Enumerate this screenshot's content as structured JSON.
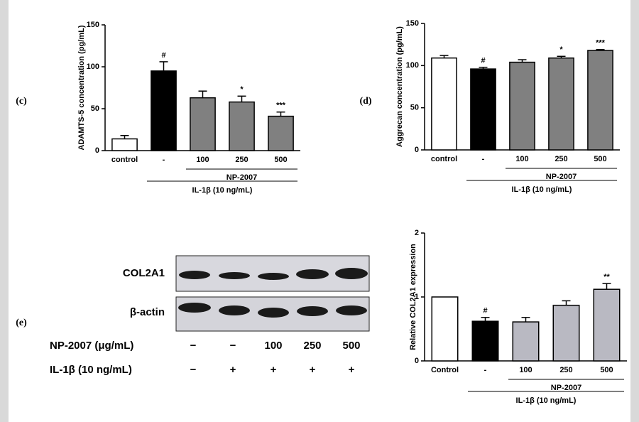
{
  "chart_data": [
    {
      "type": "bar",
      "panel": "(c)",
      "ylabel": "ADAMTS-5 concentration (pg/mL)",
      "categories": [
        "control",
        "-",
        "100",
        "250",
        "500"
      ],
      "values": [
        14,
        95,
        63,
        58,
        41
      ],
      "errors": [
        4,
        11,
        8,
        7,
        5
      ],
      "annotations": [
        "",
        "#",
        null,
        "*",
        "***"
      ],
      "colors": [
        "#ffffff",
        "#000000",
        "#808080",
        "#808080",
        "#808080"
      ],
      "groups": [
        "NP-2007",
        "IL-1β (10 ng/mL)"
      ],
      "ylim": [
        0,
        150
      ],
      "yticks": [
        0,
        50,
        100,
        150
      ]
    },
    {
      "type": "bar",
      "panel": "(d)",
      "ylabel": "Aggrecan concentration (pg/mL)",
      "categories": [
        "control",
        "-",
        "100",
        "250",
        "500"
      ],
      "values": [
        109,
        96,
        104,
        109,
        118
      ],
      "errors": [
        3,
        2,
        3,
        2,
        1
      ],
      "annotations": [
        null,
        "#",
        null,
        "*",
        "***"
      ],
      "colors": [
        "#ffffff",
        "#000000",
        "#808080",
        "#808080",
        "#808080"
      ],
      "groups": [
        "NP-2007",
        "IL-1β (10 ng/mL)"
      ],
      "ylim": [
        0,
        150
      ],
      "yticks": [
        0,
        50,
        100,
        150
      ]
    },
    {
      "type": "bar",
      "panel": "(e)",
      "ylabel": "Relative COL2A1 expression",
      "categories": [
        "Control",
        "-",
        "100",
        "250",
        "500"
      ],
      "values": [
        1.0,
        0.62,
        0.61,
        0.87,
        1.12
      ],
      "errors": [
        0,
        0.06,
        0.07,
        0.07,
        0.09
      ],
      "annotations": [
        null,
        "#",
        null,
        null,
        "**"
      ],
      "colors": [
        "#ffffff",
        "#000000",
        "#b9b9c2",
        "#b9b9c2",
        "#b9b9c2"
      ],
      "groups": [
        "NP-2007",
        "IL-1β  (10 ng/mL)"
      ],
      "ylim": [
        0,
        2
      ],
      "yticks": [
        0,
        1,
        2
      ]
    }
  ],
  "blot": {
    "rows": [
      "COL2A1",
      "β-actin"
    ],
    "conditions": [
      {
        "label": "NP-2007 (μg/mL)",
        "lanes": [
          "−",
          "−",
          "100",
          "250",
          "500"
        ]
      },
      {
        "label": "IL-1β (10 ng/mL)",
        "lanes": [
          "−",
          "+",
          "+",
          "+",
          "+"
        ]
      }
    ]
  }
}
